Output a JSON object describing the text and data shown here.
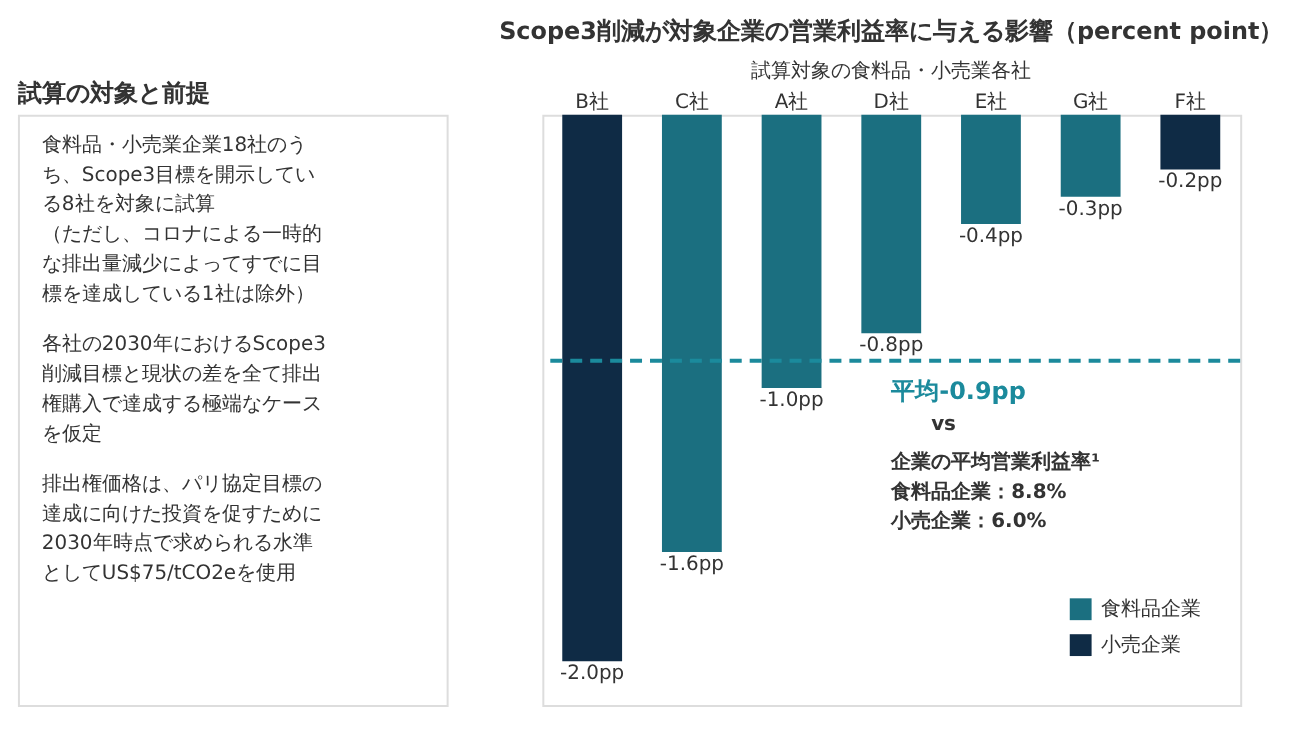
{
  "chart_data": [
    {
      "type": "other",
      "title": "試算の対象と前提",
      "annotations": [
        "食料品・小売業企業18社のうち、Scope3目標を開示している8社を対象に試算",
        "（ただし、コロナによる一時的な排出量減少によってすでに目標を達成している1社は除外）",
        "各社の2030年におけるScope3削減目標と現状の差を全て排出権購入で達成する極端なケースを仮定",
        "排出権価格は、パリ協定目標の達成に向けた投資を促すために2030年時点で求められる水準としてUS$75/tCO2eを使用"
      ]
    },
    {
      "type": "bar",
      "title": "Scope3削減が対象企業の営業利益率に与える影響（percent point）",
      "subtitle": "試算対象の食料品・小売業各社",
      "categories": [
        "B社",
        "C社",
        "A社",
        "D社",
        "E社",
        "G社",
        "F社"
      ],
      "series": [
        {
          "name": "食料品企業",
          "color": "#1b6f80",
          "values": [
            null,
            -1.6,
            -1.0,
            -0.8,
            -0.4,
            -0.3,
            null
          ],
          "value_labels": [
            null,
            "-1.6pp",
            "-1.0pp",
            "-0.8pp",
            "-0.4pp",
            "-0.3pp",
            null
          ]
        },
        {
          "name": "小売企業",
          "color": "#0f2b45",
          "values": [
            -2.0,
            null,
            null,
            null,
            null,
            null,
            -0.2
          ],
          "value_labels": [
            "-2.0pp",
            null,
            null,
            null,
            null,
            null,
            "-0.2pp"
          ]
        }
      ],
      "ref_lines": [
        {
          "axis": "y",
          "value": -0.9,
          "label": "平均-0.9pp",
          "color": "#1b8a9c",
          "line_style": "dashed"
        }
      ],
      "annotations": [
        "vs",
        "企業の平均営業利益率¹",
        "食料品企業：8.8%",
        "小売企業：6.0%"
      ],
      "legend": "bottom right",
      "tick_labels": "x"
    }
  ]
}
